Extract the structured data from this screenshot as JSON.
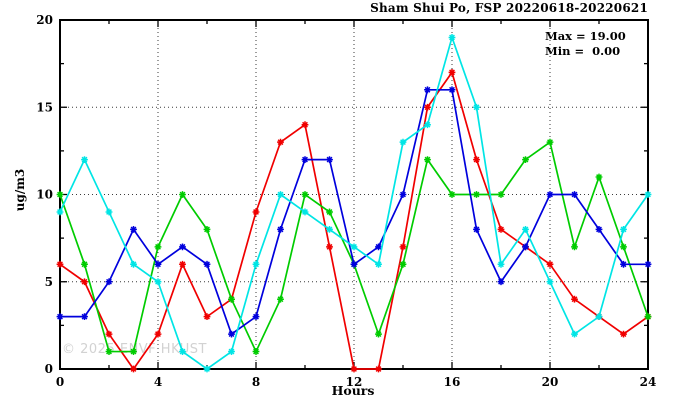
{
  "chart": {
    "title": "Sham Shui Po, FSP 20220618-20220621",
    "legend": {
      "max_label": "Max = 19.00",
      "min_label": "Min =  0.00"
    },
    "ylabel": "ug/m3",
    "xlabel": "Hours",
    "watermark": "© 2025 ENVF HKUST"
  },
  "chart_data": {
    "type": "line",
    "title": "Sham Shui Po, FSP 20220618-20220621",
    "xlabel": "Hours",
    "ylabel": "ug/m3",
    "xlim": [
      0,
      24
    ],
    "ylim": [
      0,
      20
    ],
    "xticks_major": [
      0,
      4,
      8,
      12,
      16,
      20,
      24
    ],
    "xtick_minor_step": 2,
    "yticks_major": [
      0,
      5,
      10,
      15,
      20
    ],
    "ytick_minor_step": 2.5,
    "grid_x": [
      4,
      8,
      12,
      16,
      20
    ],
    "grid_y": [
      5,
      10,
      15
    ],
    "grid_on": true,
    "legend_position": "top-right-inside",
    "stat_max": 19.0,
    "stat_min": 0.0,
    "x": [
      0,
      1,
      2,
      3,
      4,
      5,
      6,
      7,
      8,
      9,
      10,
      11,
      12,
      13,
      14,
      15,
      16,
      17,
      18,
      19,
      20,
      21,
      22,
      23,
      24
    ],
    "series": [
      {
        "name": "red",
        "color": "#f00000",
        "values": [
          6,
          5,
          2,
          0,
          2,
          6,
          3,
          4,
          9,
          13,
          14,
          7,
          0,
          0,
          7,
          15,
          17,
          12,
          8,
          7,
          6,
          4,
          3,
          2,
          3
        ]
      },
      {
        "name": "green",
        "color": "#00cc00",
        "values": [
          10,
          6,
          1,
          1,
          7,
          10,
          8,
          4,
          1,
          4,
          10,
          9,
          6,
          2,
          6,
          12,
          10,
          10,
          10,
          12,
          13,
          7,
          11,
          7,
          3
        ]
      },
      {
        "name": "blue",
        "color": "#0000dd",
        "values": [
          3,
          3,
          5,
          8,
          6,
          7,
          6,
          2,
          3,
          8,
          12,
          12,
          6,
          7,
          10,
          16,
          16,
          8,
          5,
          7,
          10,
          10,
          8,
          6,
          6
        ]
      },
      {
        "name": "cyan",
        "color": "#00e5e5",
        "values": [
          9,
          12,
          9,
          6,
          5,
          1,
          0,
          1,
          6,
          10,
          9,
          8,
          7,
          6,
          13,
          14,
          19,
          15,
          6,
          8,
          5,
          2,
          3,
          8,
          10
        ]
      }
    ]
  }
}
